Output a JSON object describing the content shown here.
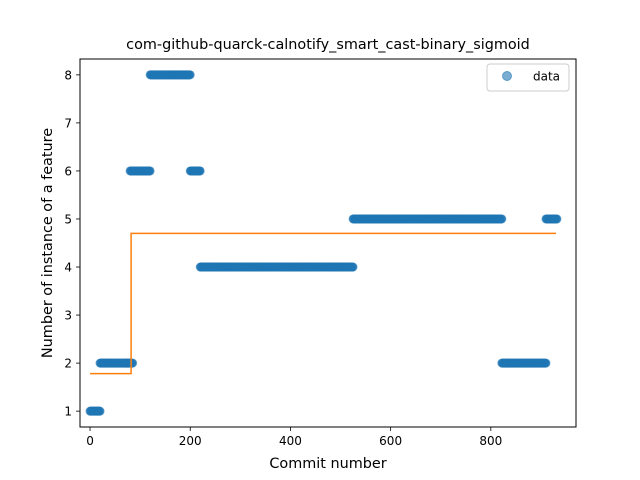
{
  "chart_data": {
    "type": "scatter",
    "title": "com-github-quarck-calnotify_smart_cast-binary_sigmoid",
    "xlabel": "Commit number",
    "ylabel": "Number of instance of a feature",
    "xlim": [
      -20,
      970
    ],
    "ylim": [
      0.67,
      8.33
    ],
    "xticks": [
      0,
      200,
      400,
      600,
      800
    ],
    "yticks": [
      1,
      2,
      3,
      4,
      5,
      6,
      7,
      8
    ],
    "grid": false,
    "legend": {
      "position": "top-right",
      "entries": [
        "data"
      ]
    },
    "series": [
      {
        "name": "data",
        "kind": "scatter",
        "color": "#1f77b4",
        "segments": [
          {
            "x_start": 0,
            "x_end": 20,
            "y": 1
          },
          {
            "x_start": 20,
            "x_end": 85,
            "y": 2
          },
          {
            "x_start": 80,
            "x_end": 120,
            "y": 6
          },
          {
            "x_start": 120,
            "x_end": 200,
            "y": 8
          },
          {
            "x_start": 200,
            "x_end": 220,
            "y": 6
          },
          {
            "x_start": 220,
            "x_end": 525,
            "y": 4
          },
          {
            "x_start": 525,
            "x_end": 822,
            "y": 5
          },
          {
            "x_start": 822,
            "x_end": 910,
            "y": 2
          },
          {
            "x_start": 910,
            "x_end": 932,
            "y": 5
          }
        ]
      },
      {
        "kind": "line",
        "color": "#ff7f0e",
        "points": [
          [
            0,
            1.78
          ],
          [
            82,
            1.78
          ],
          [
            82,
            4.7
          ],
          [
            930,
            4.7
          ]
        ]
      }
    ]
  }
}
